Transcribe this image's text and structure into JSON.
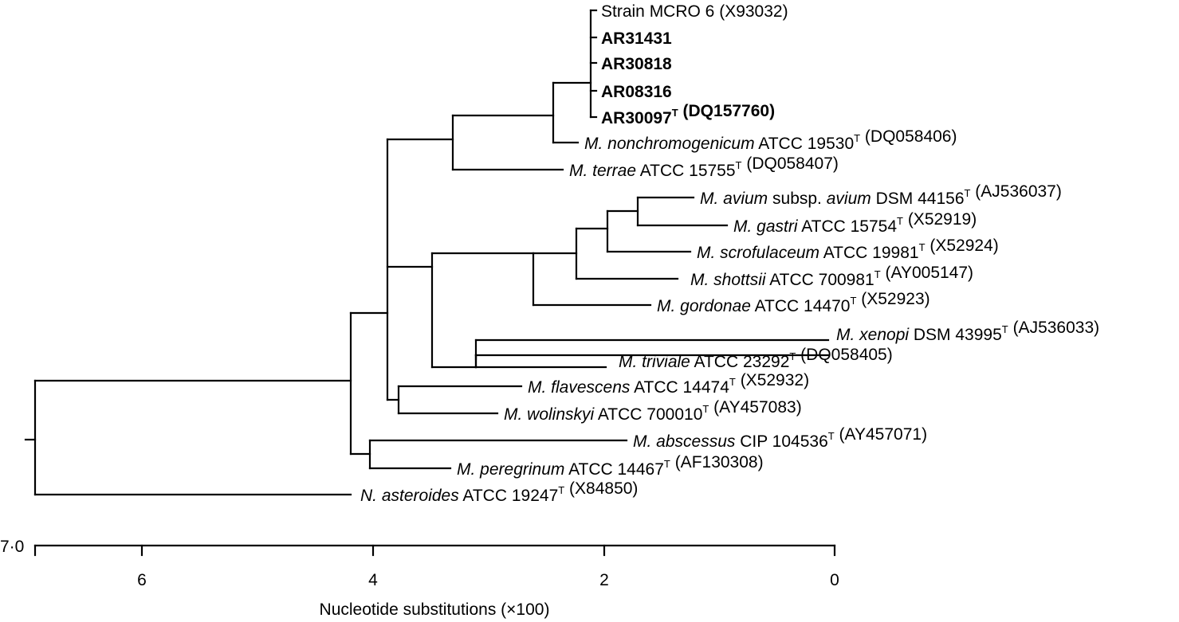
{
  "colors": {
    "ink": "#000000",
    "background": "#ffffff"
  },
  "leaves": [
    {
      "id": "mcro6",
      "parts": [
        {
          "t": "Strain MCRO 6 (X93032)"
        }
      ]
    },
    {
      "id": "ar31431",
      "parts": [
        {
          "t": "AR31431",
          "s": "b"
        }
      ]
    },
    {
      "id": "ar30818",
      "parts": [
        {
          "t": "AR30818",
          "s": "b"
        }
      ]
    },
    {
      "id": "ar08316",
      "parts": [
        {
          "t": "AR08316",
          "s": "b"
        }
      ]
    },
    {
      "id": "ar30097",
      "parts": [
        {
          "t": "AR30097",
          "s": "b"
        },
        {
          "t": "T",
          "s": "bsup"
        },
        {
          "t": " (DQ157760)",
          "s": "b"
        }
      ]
    },
    {
      "id": "nonchromogenicum",
      "parts": [
        {
          "t": "M. nonchromogenicum",
          "s": "i"
        },
        {
          "t": " ATCC 19530"
        },
        {
          "t": "T",
          "s": "sup"
        },
        {
          "t": " (DQ058406)"
        }
      ]
    },
    {
      "id": "terrae",
      "parts": [
        {
          "t": "M. terrae",
          "s": "i"
        },
        {
          "t": " ATCC 15755"
        },
        {
          "t": "T",
          "s": "sup"
        },
        {
          "t": " (DQ058407)"
        }
      ]
    },
    {
      "id": "avium",
      "parts": [
        {
          "t": "M. avium",
          "s": "i"
        },
        {
          "t": " subsp. "
        },
        {
          "t": "avium",
          "s": "i"
        },
        {
          "t": " DSM 44156"
        },
        {
          "t": "T",
          "s": "sup"
        },
        {
          "t": " (AJ536037)"
        }
      ]
    },
    {
      "id": "gastri",
      "parts": [
        {
          "t": "M. gastri",
          "s": "i"
        },
        {
          "t": " ATCC 15754"
        },
        {
          "t": "T",
          "s": "sup"
        },
        {
          "t": " (X52919)"
        }
      ]
    },
    {
      "id": "scrofulaceum",
      "parts": [
        {
          "t": "M. scrofulaceum",
          "s": "i"
        },
        {
          "t": " ATCC 19981"
        },
        {
          "t": "T",
          "s": "sup"
        },
        {
          "t": " (X52924)"
        }
      ]
    },
    {
      "id": "shottsii",
      "parts": [
        {
          "t": "M. shottsii",
          "s": "i"
        },
        {
          "t": " ATCC 700981"
        },
        {
          "t": "T",
          "s": "sup"
        },
        {
          "t": " (AY005147)"
        }
      ]
    },
    {
      "id": "gordonae",
      "parts": [
        {
          "t": "M. gordonae",
          "s": "i"
        },
        {
          "t": " ATCC 14470"
        },
        {
          "t": "T",
          "s": "sup"
        },
        {
          "t": " (X52923)"
        }
      ]
    },
    {
      "id": "xenopi",
      "parts": [
        {
          "t": "M. xenopi",
          "s": "i"
        },
        {
          "t": " DSM 43995"
        },
        {
          "t": "T",
          "s": "sup"
        },
        {
          "t": " (AJ536033)"
        }
      ]
    },
    {
      "id": "triviale",
      "parts": [
        {
          "t": "M. triviale",
          "s": "i"
        },
        {
          "t": " ATCC 23292"
        },
        {
          "t": "T",
          "s": "sup"
        },
        {
          "t": " (DQ058405)"
        }
      ]
    },
    {
      "id": "flavescens",
      "parts": [
        {
          "t": "M. flavescens",
          "s": "i"
        },
        {
          "t": " ATCC 14474"
        },
        {
          "t": "T",
          "s": "sup"
        },
        {
          "t": " (X52932)"
        }
      ]
    },
    {
      "id": "wolinskyi",
      "parts": [
        {
          "t": "M. wolinskyi",
          "s": "i"
        },
        {
          "t": " ATCC 700010"
        },
        {
          "t": "T",
          "s": "sup"
        },
        {
          "t": " (AY457083)"
        }
      ]
    },
    {
      "id": "abscessus",
      "parts": [
        {
          "t": "M. abscessus",
          "s": "i"
        },
        {
          "t": " CIP 104536"
        },
        {
          "t": "T",
          "s": "sup"
        },
        {
          "t": " (AY457071)"
        }
      ]
    },
    {
      "id": "peregrinum",
      "parts": [
        {
          "t": "M. peregrinum",
          "s": "i"
        },
        {
          "t": " ATCC 14467"
        },
        {
          "t": "T",
          "s": "sup"
        },
        {
          "t": " (AF130308)"
        }
      ]
    },
    {
      "id": "asteroides",
      "parts": [
        {
          "t": "N. asteroides",
          "s": "i"
        },
        {
          "t": " ATCC 19247"
        },
        {
          "t": "T",
          "s": "sup"
        },
        {
          "t": " (X84850)"
        }
      ]
    }
  ],
  "axis": {
    "label": "Nucleotide substitutions (×100)",
    "max_label": "7·0",
    "ticks": [
      "6",
      "4",
      "2",
      "0"
    ]
  }
}
